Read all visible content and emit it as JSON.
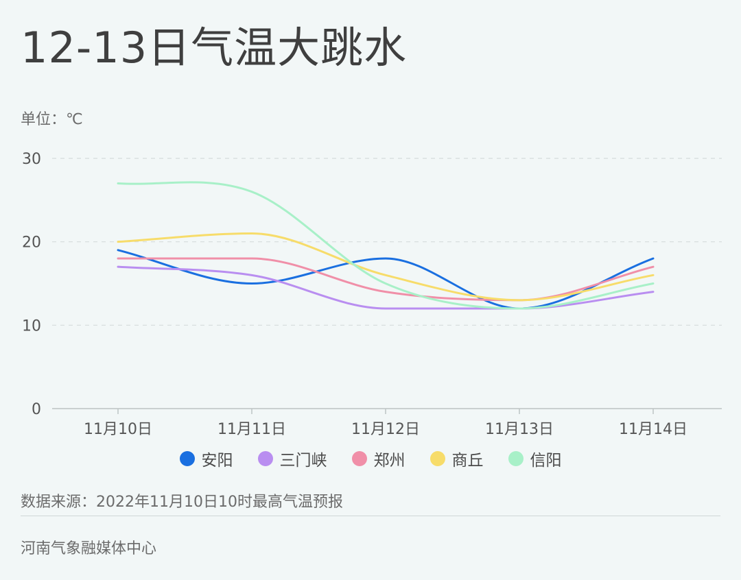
{
  "chart_data": {
    "type": "line",
    "title": "12-13日气温大跳水",
    "unit_label": "单位：℃",
    "categories": [
      "11月10日",
      "11月11日",
      "11月12日",
      "11月13日",
      "11月14日"
    ],
    "y_ticks": [
      "0",
      "10",
      "20",
      "30"
    ],
    "ylim": [
      0,
      30
    ],
    "grid": true,
    "legend_position": "bottom",
    "series": [
      {
        "name": "安阳",
        "color": "#1a6fe0",
        "values": [
          19,
          15,
          18,
          12,
          18
        ]
      },
      {
        "name": "三门峡",
        "color": "#b98ef0",
        "values": [
          17,
          16,
          12,
          12,
          14
        ]
      },
      {
        "name": "郑州",
        "color": "#f08fa8",
        "values": [
          18,
          18,
          14,
          13,
          17
        ]
      },
      {
        "name": "商丘",
        "color": "#f7dc6a",
        "values": [
          20,
          21,
          16,
          13,
          16
        ]
      },
      {
        "name": "信阳",
        "color": "#a8f0c8",
        "values": [
          27,
          26,
          15,
          12,
          15
        ]
      }
    ]
  },
  "source": "数据来源：2022年11月10日10时最高气温预报",
  "footer": "河南气象融媒体中心"
}
